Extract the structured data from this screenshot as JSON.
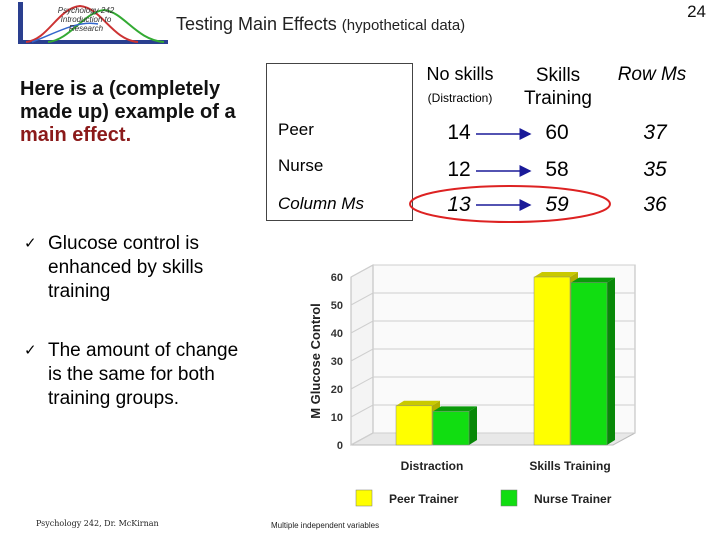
{
  "slide": {
    "logo_text": "Psychology 242 Introduction to Research",
    "title_main": "Testing Main Effects",
    "title_sub": "(hypothetical data)",
    "page_number": "24",
    "main_text_pre": "Here is a (completely made up) example of a ",
    "main_text_emph": "main effect.",
    "bullets": [
      "Glucose control is enhanced by skills training",
      "The amount of change is the same for both training groups."
    ],
    "footer_left": "Psychology 242, Dr. McKirnan",
    "footer_mid": "Multiple independent variables"
  },
  "table": {
    "col_headers": {
      "no_skills": "No skills",
      "no_skills_sub": "(Distraction)",
      "skills": "Skills Training",
      "row_ms": "Row Ms"
    },
    "rows": [
      {
        "label": "Peer",
        "values": [
          "14",
          "60",
          "37"
        ]
      },
      {
        "label": "Nurse",
        "values": [
          "12",
          "58",
          "35"
        ]
      },
      {
        "label": "Column Ms",
        "values": [
          "13",
          "59",
          "36"
        ]
      }
    ]
  },
  "chart_data": {
    "type": "bar",
    "categories": [
      "Distraction",
      "Skills Training"
    ],
    "series": [
      {
        "name": "Peer Trainer",
        "values": [
          14,
          60
        ]
      },
      {
        "name": "Nurse Trainer",
        "values": [
          12,
          58
        ]
      }
    ],
    "ylabel": "M Glucose Control",
    "xlabel": "",
    "ylim": [
      0,
      60
    ],
    "yticks": [
      "0",
      "10",
      "20",
      "30",
      "40",
      "50",
      "60"
    ],
    "grid": true,
    "legend": "bottom",
    "colors": {
      "peer": "#ffff00",
      "nurse": "#11dd11"
    }
  }
}
